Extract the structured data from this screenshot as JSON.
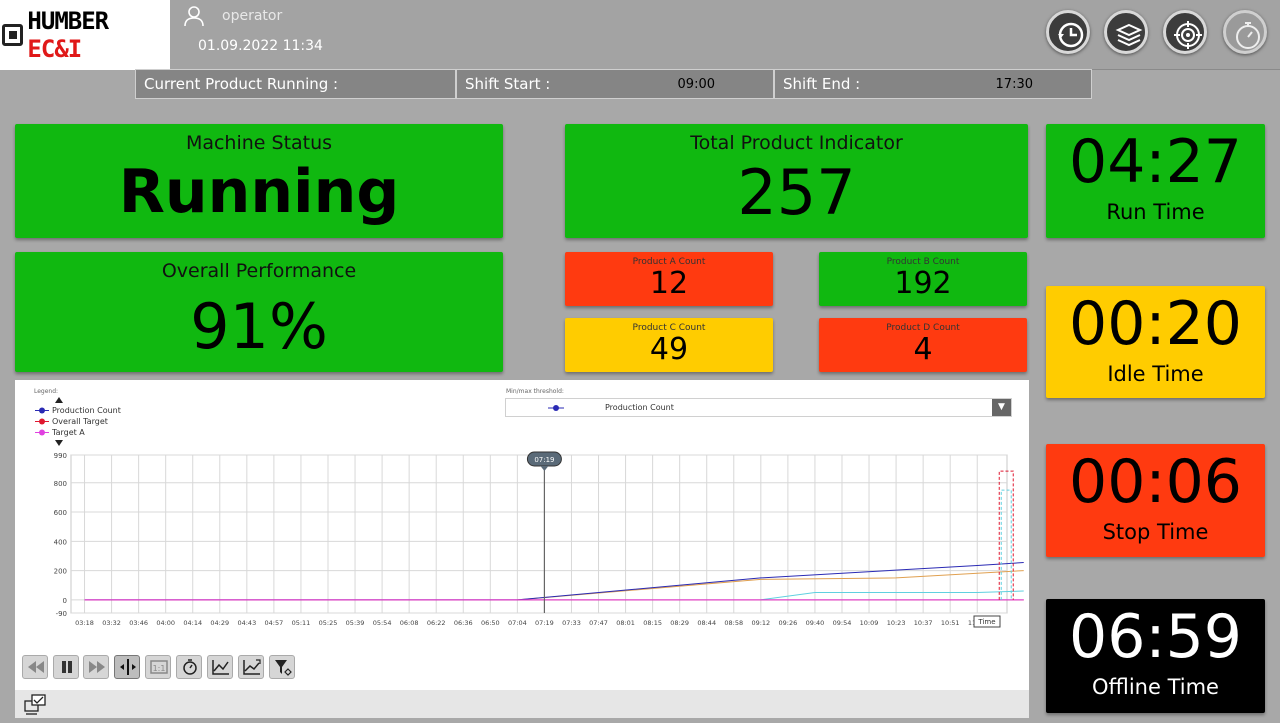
{
  "header": {
    "logo": {
      "part1": "HUMBER ",
      "part2": "EC&I"
    },
    "user": "operator",
    "datetime": "01.09.2022 11:34",
    "icons": [
      "history-icon",
      "layers-icon",
      "target-icon",
      "stopwatch-icon"
    ]
  },
  "shift": {
    "current_product_label": "Current Product Running :",
    "current_product_value": "",
    "start_label": "Shift Start :",
    "start_value": "09:00",
    "end_label": "Shift End :",
    "end_value": "17:30"
  },
  "machine_status": {
    "label": "Machine Status",
    "value": "Running",
    "color": "#10b810"
  },
  "overall_performance": {
    "label": "Overall Performance",
    "value": "91%",
    "color": "#10b810"
  },
  "total_product": {
    "label": "Total Product Indicator",
    "value": "257",
    "color": "#10b810"
  },
  "products": {
    "a": {
      "label": "Product A Count",
      "value": "12",
      "color": "#ff3a10"
    },
    "b": {
      "label": "Product B Count",
      "value": "192",
      "color": "#10b810"
    },
    "c": {
      "label": "Product C Count",
      "value": "49",
      "color": "#ffcc00"
    },
    "d": {
      "label": "Product D Count",
      "value": "4",
      "color": "#ff3a10"
    }
  },
  "times": {
    "run": {
      "value": "04:27",
      "label": "Run Time",
      "color": "#10b810"
    },
    "idle": {
      "value": "00:20",
      "label": "Idle Time",
      "color": "#ffcc00"
    },
    "stop": {
      "value": "00:06",
      "label": "Stop Time",
      "color": "#ff3a10"
    },
    "offline": {
      "value": "06:59",
      "label": "Offline Time",
      "color": "#000000"
    }
  },
  "chart_panel": {
    "legend_title": "Legend:",
    "threshold_title": "Min/max threshold:",
    "threshold_value": "Production Count",
    "cursor_label": "07:19",
    "time_label": "Time"
  },
  "chart_data": {
    "type": "line",
    "ylim": [
      -90,
      990
    ],
    "yticks": [
      990,
      800,
      600,
      400,
      200,
      0,
      -90
    ],
    "x": [
      "03:18",
      "03:32",
      "03:46",
      "04:00",
      "04:14",
      "04:29",
      "04:43",
      "04:57",
      "05:11",
      "05:25",
      "05:39",
      "05:54",
      "06:08",
      "06:22",
      "06:36",
      "06:50",
      "07:04",
      "07:19",
      "07:33",
      "07:47",
      "08:01",
      "08:15",
      "08:29",
      "08:44",
      "08:58",
      "09:12",
      "09:26",
      "09:40",
      "09:54",
      "10:09",
      "10:23",
      "10:37",
      "10:51",
      "11:05"
    ],
    "series": [
      {
        "name": "Production Count",
        "color": "#2a2ab4",
        "points": [
          [
            "03:18",
            0
          ],
          [
            "07:04",
            0
          ],
          [
            "09:12",
            150
          ],
          [
            "11:05",
            235
          ],
          [
            "11:31",
            255
          ]
        ]
      },
      {
        "name": "Overall Target",
        "color": "#e01830",
        "points": [
          [
            "03:18",
            0
          ],
          [
            "11:31",
            0
          ]
        ]
      },
      {
        "name": "Target A",
        "color": "#e040e0",
        "points": [
          [
            "03:18",
            0
          ],
          [
            "11:31",
            0
          ]
        ]
      }
    ],
    "other_traces": [
      {
        "color": "#e0a050",
        "points": [
          [
            "07:04",
            0
          ],
          [
            "09:12",
            140
          ],
          [
            "10:23",
            150
          ],
          [
            "11:31",
            200
          ]
        ]
      },
      {
        "color": "#60d0e0",
        "points": [
          [
            "09:12",
            0
          ],
          [
            "09:40",
            50
          ],
          [
            "11:05",
            50
          ],
          [
            "11:31",
            60
          ]
        ]
      }
    ]
  },
  "controls": [
    "rewind-icon",
    "pause-icon",
    "forward-icon",
    "ruler-icon",
    "one-to-one-icon",
    "stopwatch-small-icon",
    "trend-icon",
    "trend-zoom-icon",
    "filter-icon"
  ]
}
